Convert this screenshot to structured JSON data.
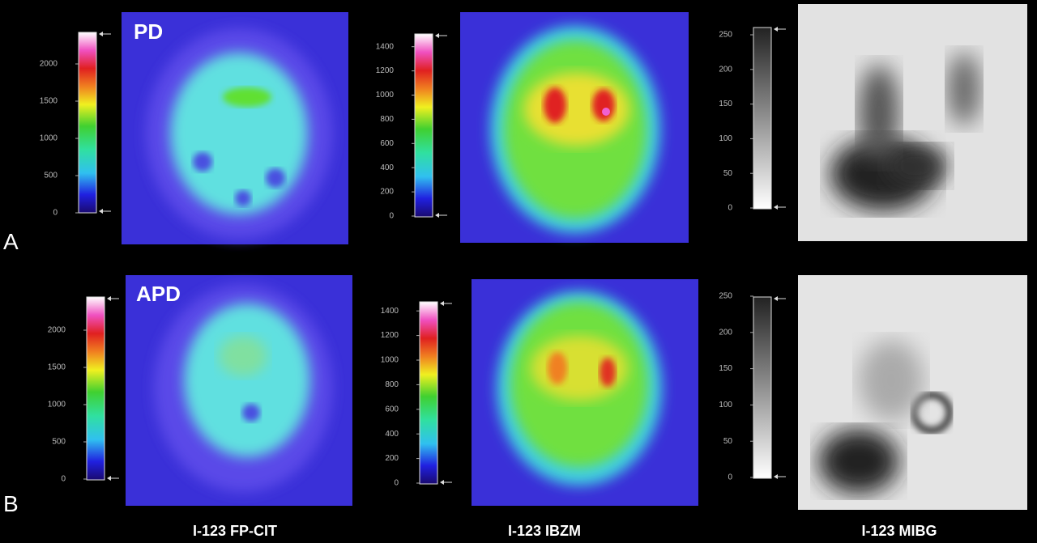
{
  "rows": [
    {
      "label": "A",
      "panel_label": "PD",
      "scales": [
        {
          "ticks": [
            0,
            500,
            1000,
            1500,
            2000
          ]
        },
        {
          "ticks": [
            0,
            200,
            400,
            600,
            800,
            1000,
            1200,
            1400
          ]
        },
        {
          "ticks": [
            0,
            50,
            100,
            150,
            200,
            250
          ]
        }
      ]
    },
    {
      "label": "B",
      "panel_label": "APD",
      "scales": [
        {
          "ticks": [
            0,
            500,
            1000,
            1500,
            2000
          ]
        },
        {
          "ticks": [
            0,
            200,
            400,
            600,
            800,
            1000,
            1200,
            1400
          ]
        },
        {
          "ticks": [
            0,
            50,
            100,
            150,
            200,
            250
          ]
        }
      ]
    }
  ],
  "captions": [
    "I-123 FP-CIT",
    "I-123 IBZM",
    "I-123 MIBG"
  ]
}
